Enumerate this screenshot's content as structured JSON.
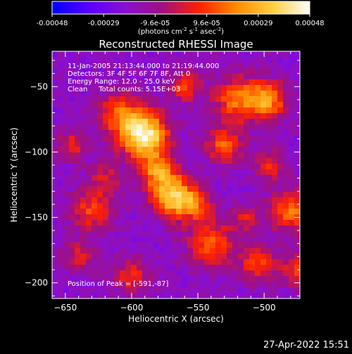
{
  "chart_data": {
    "type": "heatmap",
    "title": "Reconstructed RHESSI Image",
    "xlabel": "Heliocentric X (arcsec)",
    "ylabel": "Heliocentric Y (arcsec)",
    "xlim": [
      -660,
      -473
    ],
    "ylim": [
      -212,
      -23
    ],
    "x_ticks": [
      -650,
      -600,
      -550,
      -500
    ],
    "y_ticks": [
      -50,
      -100,
      -150,
      -200
    ],
    "colorbar": {
      "ticks": [
        "-0.00048",
        "-0.00029",
        "-9.6e-05",
        "9.6e-05",
        "0.00029",
        "0.00048"
      ],
      "range": [
        -0.00048,
        0.00048
      ],
      "unit_base": "(photons cm",
      "unit_sup1": "-2",
      "unit_mid1": " s",
      "unit_sup2": "-1",
      "unit_mid2": " asec",
      "unit_sup3": "-2",
      "unit_end": ")",
      "colors": [
        "#0000ff",
        "#5a00ff",
        "#8a0fd0",
        "#a01080",
        "#ff2000",
        "#ff8a00",
        "#ffd040",
        "#ffffff"
      ]
    },
    "info_lines": [
      "11-Jan-2005 21:13:44.000 to 21:19:44.000",
      "Detectors: 3F 4F 5F 6F 7F 8F, Att 0",
      "Energy Range: 12.0 - 25.0 keV",
      "Clean     Total counts: 5.15E+03"
    ],
    "peak_text": "Position of Peak = [-591,-87]",
    "peak_position": [
      -591,
      -87
    ],
    "image_colors": {
      "background_low": "#3a2a78",
      "background_mid": "#6a30b0",
      "flare_low": "#c01010",
      "flare_mid": "#ff5000",
      "flare_high": "#ffe890"
    }
  },
  "timestamp": "27-Apr-2022 15:51"
}
